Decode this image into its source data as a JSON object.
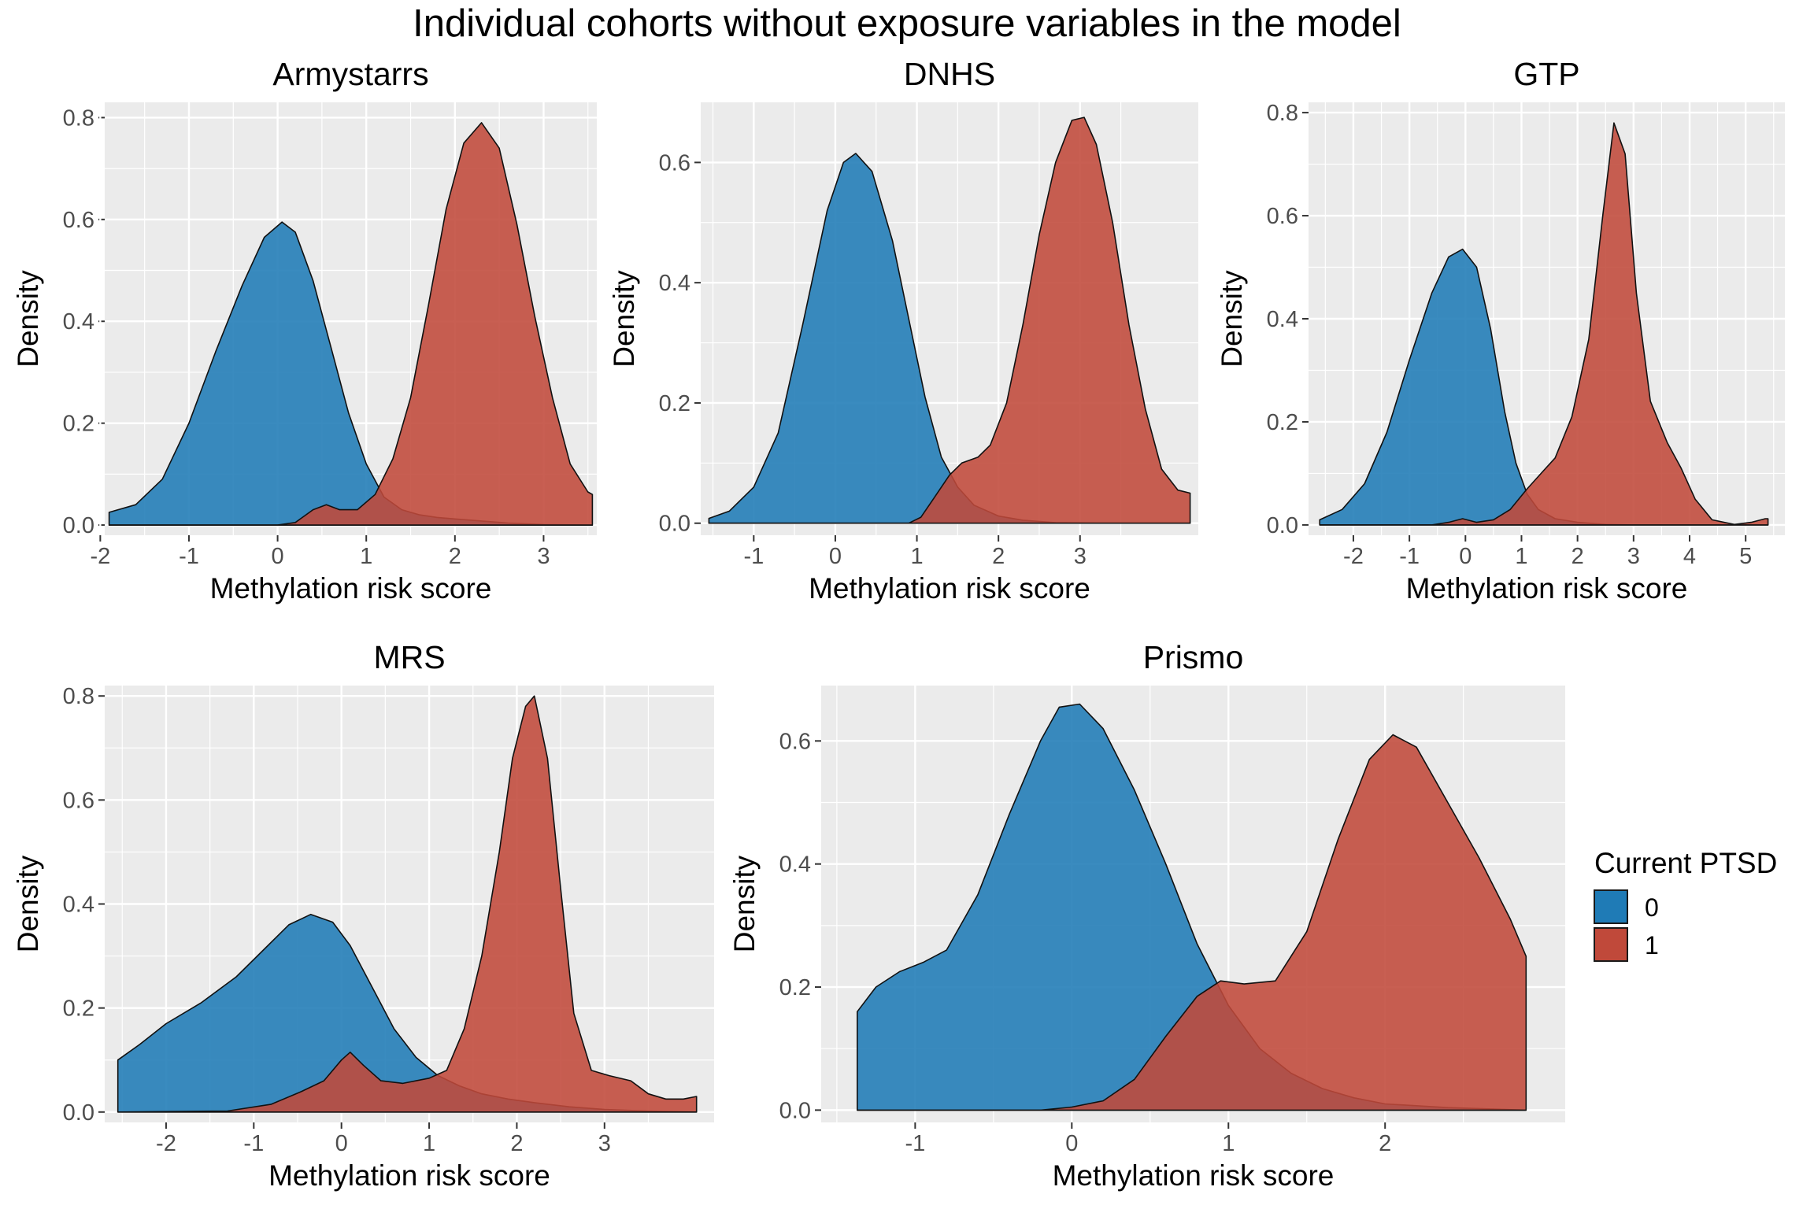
{
  "figure": {
    "title": "Individual cohorts without exposure variables in the model",
    "legend": {
      "title": "Current PTSD",
      "items": [
        {
          "label": "0",
          "color": "#1f7bb6"
        },
        {
          "label": "1",
          "color": "#c0493a"
        }
      ]
    }
  },
  "chart_data": [
    {
      "type": "area",
      "title": "Armystarrs",
      "xlabel": "Methylation risk score",
      "ylabel": "Density",
      "xlim": [
        -1.95,
        3.6
      ],
      "ylim": [
        -0.02,
        0.83
      ],
      "xticks": [
        -2,
        -1,
        0,
        1,
        2,
        3
      ],
      "yticks": [
        0.0,
        0.2,
        0.4,
        0.6,
        0.8
      ],
      "series": [
        {
          "name": "0",
          "points": [
            [
              -1.9,
              0.025
            ],
            [
              -1.6,
              0.04
            ],
            [
              -1.3,
              0.09
            ],
            [
              -1.0,
              0.2
            ],
            [
              -0.7,
              0.34
            ],
            [
              -0.4,
              0.47
            ],
            [
              -0.15,
              0.565
            ],
            [
              0.05,
              0.595
            ],
            [
              0.2,
              0.575
            ],
            [
              0.4,
              0.48
            ],
            [
              0.6,
              0.35
            ],
            [
              0.8,
              0.22
            ],
            [
              1.0,
              0.12
            ],
            [
              1.2,
              0.055
            ],
            [
              1.4,
              0.03
            ],
            [
              1.6,
              0.02
            ],
            [
              1.8,
              0.015
            ],
            [
              2.0,
              0.012
            ],
            [
              2.3,
              0.008
            ],
            [
              2.6,
              0.004
            ],
            [
              3.0,
              0.001
            ],
            [
              3.55,
              0.0
            ]
          ]
        },
        {
          "name": "1",
          "points": [
            [
              -1.9,
              0.0
            ],
            [
              0.0,
              0.0
            ],
            [
              0.2,
              0.005
            ],
            [
              0.4,
              0.03
            ],
            [
              0.55,
              0.04
            ],
            [
              0.7,
              0.03
            ],
            [
              0.9,
              0.03
            ],
            [
              1.1,
              0.06
            ],
            [
              1.3,
              0.13
            ],
            [
              1.5,
              0.25
            ],
            [
              1.7,
              0.43
            ],
            [
              1.9,
              0.62
            ],
            [
              2.1,
              0.75
            ],
            [
              2.3,
              0.79
            ],
            [
              2.5,
              0.74
            ],
            [
              2.7,
              0.59
            ],
            [
              2.9,
              0.41
            ],
            [
              3.1,
              0.25
            ],
            [
              3.3,
              0.12
            ],
            [
              3.5,
              0.065
            ],
            [
              3.55,
              0.06
            ]
          ]
        }
      ]
    },
    {
      "type": "area",
      "title": "DNHS",
      "xlabel": "Methylation risk score",
      "ylabel": "Density",
      "xlim": [
        -1.65,
        4.45
      ],
      "ylim": [
        -0.02,
        0.7
      ],
      "xticks": [
        -1,
        0,
        1,
        2,
        3
      ],
      "yticks": [
        0.0,
        0.2,
        0.4,
        0.6
      ],
      "series": [
        {
          "name": "0",
          "points": [
            [
              -1.55,
              0.008
            ],
            [
              -1.3,
              0.02
            ],
            [
              -1.0,
              0.06
            ],
            [
              -0.7,
              0.15
            ],
            [
              -0.4,
              0.33
            ],
            [
              -0.1,
              0.52
            ],
            [
              0.1,
              0.6
            ],
            [
              0.25,
              0.615
            ],
            [
              0.45,
              0.585
            ],
            [
              0.7,
              0.47
            ],
            [
              0.9,
              0.34
            ],
            [
              1.1,
              0.21
            ],
            [
              1.3,
              0.11
            ],
            [
              1.5,
              0.06
            ],
            [
              1.7,
              0.03
            ],
            [
              2.0,
              0.012
            ],
            [
              2.3,
              0.005
            ],
            [
              2.7,
              0.001
            ],
            [
              3.2,
              0.0
            ],
            [
              4.35,
              0.0
            ]
          ]
        },
        {
          "name": "1",
          "points": [
            [
              -1.55,
              0.0
            ],
            [
              0.9,
              0.0
            ],
            [
              1.05,
              0.01
            ],
            [
              1.2,
              0.04
            ],
            [
              1.4,
              0.08
            ],
            [
              1.55,
              0.1
            ],
            [
              1.75,
              0.11
            ],
            [
              1.9,
              0.13
            ],
            [
              2.1,
              0.2
            ],
            [
              2.3,
              0.33
            ],
            [
              2.5,
              0.48
            ],
            [
              2.7,
              0.6
            ],
            [
              2.9,
              0.67
            ],
            [
              3.05,
              0.675
            ],
            [
              3.2,
              0.63
            ],
            [
              3.4,
              0.5
            ],
            [
              3.6,
              0.33
            ],
            [
              3.8,
              0.19
            ],
            [
              4.0,
              0.09
            ],
            [
              4.2,
              0.055
            ],
            [
              4.35,
              0.05
            ]
          ]
        }
      ]
    },
    {
      "type": "area",
      "title": "GTP",
      "xlabel": "Methylation risk score",
      "ylabel": "Density",
      "xlim": [
        -2.8,
        5.7
      ],
      "ylim": [
        -0.02,
        0.82
      ],
      "xticks": [
        -2,
        -1,
        0,
        1,
        2,
        3,
        4,
        5
      ],
      "yticks": [
        0.0,
        0.2,
        0.4,
        0.6,
        0.8
      ],
      "series": [
        {
          "name": "0",
          "points": [
            [
              -2.6,
              0.01
            ],
            [
              -2.2,
              0.03
            ],
            [
              -1.8,
              0.08
            ],
            [
              -1.4,
              0.18
            ],
            [
              -1.0,
              0.32
            ],
            [
              -0.6,
              0.45
            ],
            [
              -0.3,
              0.52
            ],
            [
              -0.05,
              0.535
            ],
            [
              0.2,
              0.5
            ],
            [
              0.45,
              0.38
            ],
            [
              0.7,
              0.22
            ],
            [
              0.9,
              0.12
            ],
            [
              1.1,
              0.06
            ],
            [
              1.3,
              0.03
            ],
            [
              1.6,
              0.012
            ],
            [
              2.0,
              0.005
            ],
            [
              2.5,
              0.001
            ],
            [
              3.0,
              0.0
            ],
            [
              5.4,
              0.0
            ]
          ]
        },
        {
          "name": "1",
          "points": [
            [
              -2.6,
              0.0
            ],
            [
              -0.6,
              0.0
            ],
            [
              -0.3,
              0.005
            ],
            [
              -0.05,
              0.012
            ],
            [
              0.2,
              0.005
            ],
            [
              0.5,
              0.01
            ],
            [
              0.8,
              0.03
            ],
            [
              1.1,
              0.07
            ],
            [
              1.35,
              0.1
            ],
            [
              1.6,
              0.13
            ],
            [
              1.9,
              0.21
            ],
            [
              2.2,
              0.36
            ],
            [
              2.45,
              0.6
            ],
            [
              2.65,
              0.78
            ],
            [
              2.85,
              0.72
            ],
            [
              3.05,
              0.45
            ],
            [
              3.3,
              0.24
            ],
            [
              3.6,
              0.16
            ],
            [
              3.85,
              0.11
            ],
            [
              4.1,
              0.05
            ],
            [
              4.4,
              0.01
            ],
            [
              4.8,
              0.001
            ],
            [
              5.1,
              0.005
            ],
            [
              5.35,
              0.012
            ],
            [
              5.4,
              0.012
            ]
          ]
        }
      ]
    },
    {
      "type": "area",
      "title": "MRS",
      "xlabel": "Methylation risk score",
      "ylabel": "Density",
      "xlim": [
        -2.7,
        4.25
      ],
      "ylim": [
        -0.02,
        0.82
      ],
      "xticks": [
        -2,
        -1,
        0,
        1,
        2,
        3
      ],
      "yticks": [
        0.0,
        0.2,
        0.4,
        0.6,
        0.8
      ],
      "series": [
        {
          "name": "0",
          "points": [
            [
              -2.55,
              0.1
            ],
            [
              -2.3,
              0.13
            ],
            [
              -2.0,
              0.17
            ],
            [
              -1.6,
              0.21
            ],
            [
              -1.2,
              0.26
            ],
            [
              -0.9,
              0.31
            ],
            [
              -0.6,
              0.36
            ],
            [
              -0.35,
              0.38
            ],
            [
              -0.1,
              0.365
            ],
            [
              0.1,
              0.32
            ],
            [
              0.35,
              0.24
            ],
            [
              0.6,
              0.16
            ],
            [
              0.85,
              0.105
            ],
            [
              1.1,
              0.07
            ],
            [
              1.35,
              0.05
            ],
            [
              1.6,
              0.035
            ],
            [
              1.9,
              0.025
            ],
            [
              2.2,
              0.018
            ],
            [
              2.6,
              0.01
            ],
            [
              3.0,
              0.005
            ],
            [
              3.5,
              0.002
            ],
            [
              4.05,
              0.0
            ]
          ]
        },
        {
          "name": "1",
          "points": [
            [
              -2.55,
              0.0
            ],
            [
              -1.3,
              0.002
            ],
            [
              -0.8,
              0.015
            ],
            [
              -0.45,
              0.04
            ],
            [
              -0.2,
              0.06
            ],
            [
              0.0,
              0.1
            ],
            [
              0.1,
              0.115
            ],
            [
              0.25,
              0.09
            ],
            [
              0.45,
              0.06
            ],
            [
              0.7,
              0.055
            ],
            [
              1.0,
              0.065
            ],
            [
              1.2,
              0.08
            ],
            [
              1.4,
              0.16
            ],
            [
              1.6,
              0.3
            ],
            [
              1.8,
              0.5
            ],
            [
              1.95,
              0.68
            ],
            [
              2.1,
              0.78
            ],
            [
              2.2,
              0.8
            ],
            [
              2.35,
              0.68
            ],
            [
              2.5,
              0.43
            ],
            [
              2.65,
              0.19
            ],
            [
              2.85,
              0.08
            ],
            [
              3.05,
              0.07
            ],
            [
              3.3,
              0.06
            ],
            [
              3.5,
              0.035
            ],
            [
              3.7,
              0.025
            ],
            [
              3.9,
              0.025
            ],
            [
              4.05,
              0.03
            ]
          ]
        }
      ]
    },
    {
      "type": "area",
      "title": "Prismo",
      "xlabel": "Methylation risk score",
      "ylabel": "Density",
      "xlim": [
        -1.6,
        3.15
      ],
      "ylim": [
        -0.02,
        0.69
      ],
      "xticks": [
        -1,
        0,
        1,
        2
      ],
      "yticks": [
        0.0,
        0.2,
        0.4,
        0.6
      ],
      "series": [
        {
          "name": "0",
          "points": [
            [
              -1.37,
              0.16
            ],
            [
              -1.25,
              0.2
            ],
            [
              -1.1,
              0.225
            ],
            [
              -0.95,
              0.24
            ],
            [
              -0.8,
              0.26
            ],
            [
              -0.6,
              0.35
            ],
            [
              -0.4,
              0.48
            ],
            [
              -0.2,
              0.6
            ],
            [
              -0.08,
              0.655
            ],
            [
              0.05,
              0.66
            ],
            [
              0.2,
              0.62
            ],
            [
              0.4,
              0.52
            ],
            [
              0.6,
              0.4
            ],
            [
              0.8,
              0.27
            ],
            [
              1.0,
              0.17
            ],
            [
              1.2,
              0.1
            ],
            [
              1.4,
              0.06
            ],
            [
              1.6,
              0.035
            ],
            [
              1.8,
              0.02
            ],
            [
              2.0,
              0.01
            ],
            [
              2.4,
              0.004
            ],
            [
              2.9,
              0.0
            ]
          ]
        },
        {
          "name": "1",
          "points": [
            [
              -1.37,
              0.0
            ],
            [
              -0.2,
              0.0
            ],
            [
              0.0,
              0.005
            ],
            [
              0.2,
              0.015
            ],
            [
              0.4,
              0.05
            ],
            [
              0.6,
              0.12
            ],
            [
              0.8,
              0.185
            ],
            [
              0.95,
              0.21
            ],
            [
              1.1,
              0.205
            ],
            [
              1.3,
              0.21
            ],
            [
              1.5,
              0.29
            ],
            [
              1.7,
              0.44
            ],
            [
              1.9,
              0.57
            ],
            [
              2.05,
              0.61
            ],
            [
              2.2,
              0.59
            ],
            [
              2.4,
              0.5
            ],
            [
              2.6,
              0.41
            ],
            [
              2.8,
              0.31
            ],
            [
              2.9,
              0.25
            ]
          ]
        }
      ]
    }
  ]
}
